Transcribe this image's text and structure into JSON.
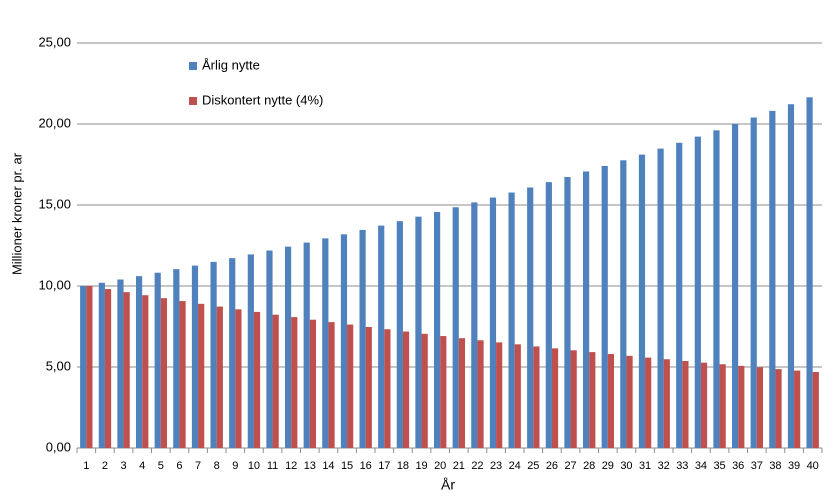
{
  "chart_data": {
    "type": "bar",
    "x_label": "År",
    "y_label": "Millioner kroner pr. ar",
    "categories": [
      1,
      2,
      3,
      4,
      5,
      6,
      7,
      8,
      9,
      10,
      11,
      12,
      13,
      14,
      15,
      16,
      17,
      18,
      19,
      20,
      21,
      22,
      23,
      24,
      25,
      26,
      27,
      28,
      29,
      30,
      31,
      32,
      33,
      34,
      35,
      36,
      37,
      38,
      39,
      40
    ],
    "series": [
      {
        "name": "Årlig nytte",
        "color": "#4f81bd",
        "values": [
          10.0,
          10.2,
          10.4,
          10.61,
          10.82,
          11.04,
          11.26,
          11.49,
          11.72,
          11.95,
          12.19,
          12.43,
          12.68,
          12.94,
          13.19,
          13.46,
          13.73,
          14.0,
          14.28,
          14.57,
          14.86,
          15.16,
          15.46,
          15.77,
          16.08,
          16.41,
          16.73,
          17.07,
          17.41,
          17.76,
          18.11,
          18.48,
          18.84,
          19.22,
          19.61,
          20.0,
          20.4,
          20.81,
          21.22,
          21.65
        ]
      },
      {
        "name": "Diskontert nytte (4%)",
        "color": "#c0504d",
        "values": [
          10.0,
          9.81,
          9.62,
          9.43,
          9.25,
          9.07,
          8.9,
          8.73,
          8.56,
          8.4,
          8.23,
          8.08,
          7.92,
          7.77,
          7.62,
          7.47,
          7.33,
          7.19,
          7.05,
          6.91,
          6.78,
          6.65,
          6.52,
          6.4,
          6.27,
          6.15,
          6.03,
          5.92,
          5.8,
          5.69,
          5.58,
          5.48,
          5.37,
          5.27,
          5.17,
          5.07,
          4.97,
          4.87,
          4.78,
          4.69
        ]
      }
    ],
    "ylim": [
      0,
      25
    ],
    "yticks": [
      {
        "value": 0,
        "label": "0,00"
      },
      {
        "value": 5,
        "label": "5,00"
      },
      {
        "value": 10,
        "label": "10,00"
      },
      {
        "value": 15,
        "label": "15,00"
      },
      {
        "value": 20,
        "label": "20,00"
      },
      {
        "value": 25,
        "label": "25,00"
      }
    ],
    "grid": true
  }
}
